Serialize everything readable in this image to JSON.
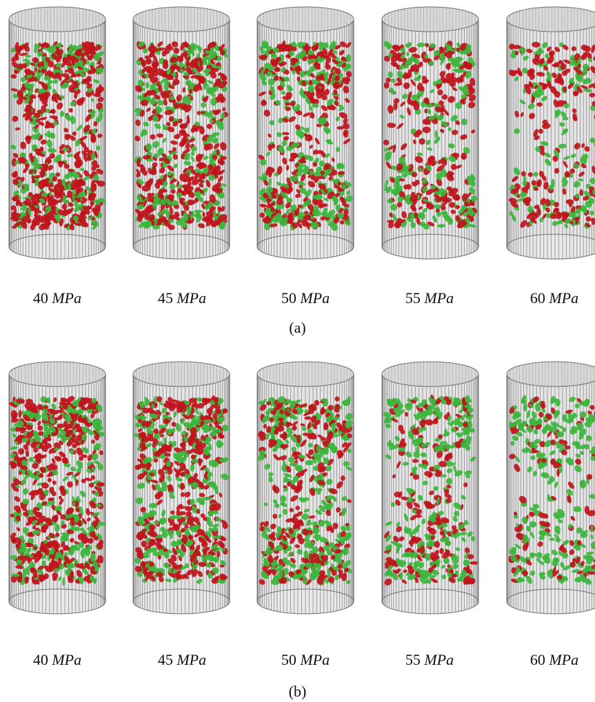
{
  "figure": {
    "panels": [
      {
        "id": "a",
        "caption": "(a)",
        "specimens": [
          {
            "value": "40",
            "unit": "MPa",
            "particle_density": 1.0,
            "red_fraction": 0.62
          },
          {
            "value": "45",
            "unit": "MPa",
            "particle_density": 0.95,
            "red_fraction": 0.6
          },
          {
            "value": "50",
            "unit": "MPa",
            "particle_density": 0.85,
            "red_fraction": 0.58
          },
          {
            "value": "55",
            "unit": "MPa",
            "particle_density": 0.62,
            "red_fraction": 0.55
          },
          {
            "value": "60",
            "unit": "MPa",
            "particle_density": 0.45,
            "red_fraction": 0.55
          }
        ]
      },
      {
        "id": "b",
        "caption": "(b)",
        "specimens": [
          {
            "value": "40",
            "unit": "MPa",
            "particle_density": 1.0,
            "red_fraction": 0.62
          },
          {
            "value": "45",
            "unit": "MPa",
            "particle_density": 0.95,
            "red_fraction": 0.55
          },
          {
            "value": "50",
            "unit": "MPa",
            "particle_density": 0.82,
            "red_fraction": 0.45
          },
          {
            "value": "55",
            "unit": "MPa",
            "particle_density": 0.62,
            "red_fraction": 0.4
          },
          {
            "value": "60",
            "unit": "MPa",
            "particle_density": 0.48,
            "red_fraction": 0.3
          }
        ]
      }
    ],
    "colors": {
      "red_particle": "#c0141b",
      "green_particle": "#3cb63c",
      "cylinder_fill": "#e3e3e3",
      "cylinder_line": "#6f6f6f"
    }
  }
}
